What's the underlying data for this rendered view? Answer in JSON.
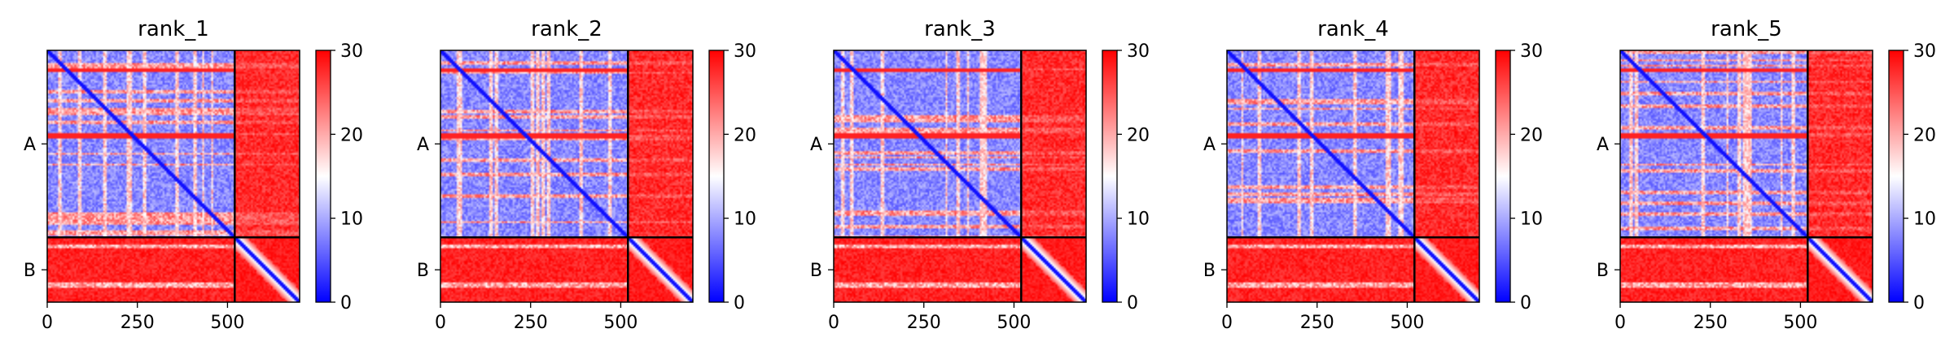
{
  "chart_data": [
    {
      "type": "heatmap",
      "title": "rank_1",
      "chains": [
        "A",
        "B"
      ],
      "chain_break": 520,
      "xlim": [
        0,
        700
      ],
      "xticks": [
        0,
        250,
        500
      ],
      "colorbar": {
        "range": [
          0,
          30
        ],
        "ticks": [
          0,
          10,
          20,
          30
        ],
        "colors": [
          "#0000ff",
          "#ffffff",
          "#ff0000"
        ]
      }
    },
    {
      "type": "heatmap",
      "title": "rank_2",
      "chains": [
        "A",
        "B"
      ],
      "chain_break": 520,
      "xlim": [
        0,
        700
      ],
      "xticks": [
        0,
        250,
        500
      ],
      "colorbar": {
        "range": [
          0,
          30
        ],
        "ticks": [
          0,
          10,
          20,
          30
        ],
        "colors": [
          "#0000ff",
          "#ffffff",
          "#ff0000"
        ]
      }
    },
    {
      "type": "heatmap",
      "title": "rank_3",
      "chains": [
        "A",
        "B"
      ],
      "chain_break": 520,
      "xlim": [
        0,
        700
      ],
      "xticks": [
        0,
        250,
        500
      ],
      "colorbar": {
        "range": [
          0,
          30
        ],
        "ticks": [
          0,
          10,
          20,
          30
        ],
        "colors": [
          "#0000ff",
          "#ffffff",
          "#ff0000"
        ]
      }
    },
    {
      "type": "heatmap",
      "title": "rank_4",
      "chains": [
        "A",
        "B"
      ],
      "chain_break": 520,
      "xlim": [
        0,
        700
      ],
      "xticks": [
        0,
        250,
        500
      ],
      "colorbar": {
        "range": [
          0,
          30
        ],
        "ticks": [
          0,
          10,
          20,
          30
        ],
        "colors": [
          "#0000ff",
          "#ffffff",
          "#ff0000"
        ]
      }
    },
    {
      "type": "heatmap",
      "title": "rank_5",
      "chains": [
        "A",
        "B"
      ],
      "chain_break": 520,
      "xlim": [
        0,
        700
      ],
      "xticks": [
        0,
        250,
        500
      ],
      "colorbar": {
        "range": [
          0,
          30
        ],
        "ticks": [
          0,
          10,
          20,
          30
        ],
        "colors": [
          "#0000ff",
          "#ffffff",
          "#ff0000"
        ]
      }
    }
  ]
}
